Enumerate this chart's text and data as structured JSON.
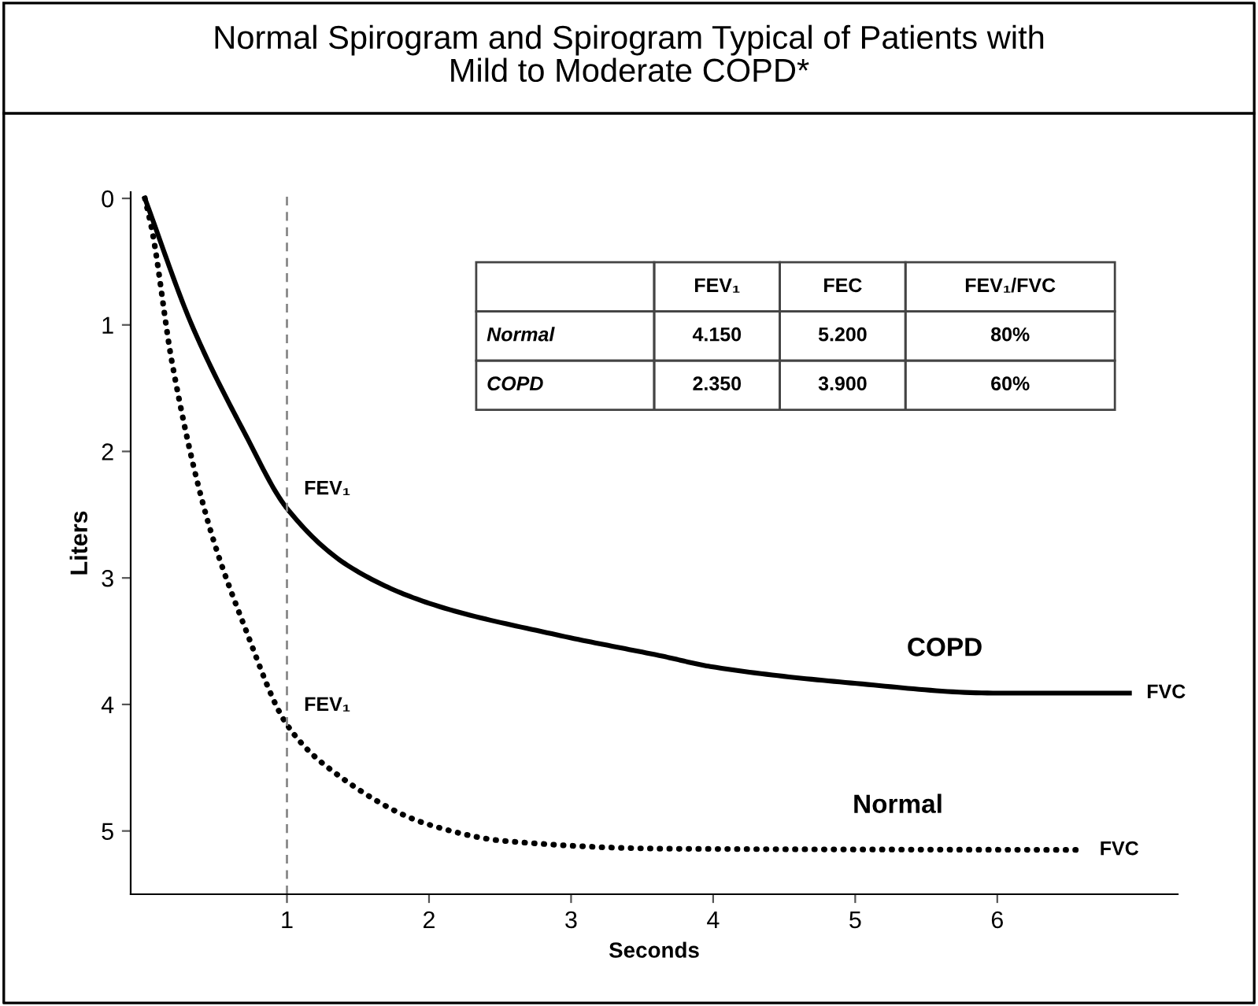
{
  "chart_data": {
    "type": "line",
    "title": "Normal Spirogram and Spirogram Typical of Patients with\nMild to Moderate COPD*",
    "xlabel": "Seconds",
    "ylabel": "Liters",
    "xlim": [
      -0.1,
      7.27
    ],
    "ylim": [
      5.5,
      -0.05
    ],
    "xticks": [
      1,
      2,
      3,
      4,
      5,
      6
    ],
    "yticks": [
      0,
      1,
      2,
      3,
      4,
      5
    ],
    "series": [
      {
        "name": "COPD",
        "color": "#000000",
        "line_style": "solid",
        "x": [
          0,
          0.33,
          0.7,
          1.0,
          1.44,
          2.0,
          2.9,
          3.65,
          3.98,
          4.97,
          5.97,
          6.93
        ],
        "values": [
          0,
          1.0,
          1.85,
          2.45,
          2.91,
          3.2,
          3.45,
          3.62,
          3.7,
          3.83,
          3.91,
          3.91
        ]
      },
      {
        "name": "Normal",
        "color": "#000000",
        "line_style": "dotted",
        "x": [
          0,
          0.05,
          0.19,
          0.44,
          0.7,
          1.0,
          1.29,
          2.0,
          2.54,
          3.65,
          6.6
        ],
        "values": [
          0,
          0.25,
          1.29,
          2.54,
          3.38,
          4.16,
          4.5,
          4.95,
          5.08,
          5.14,
          5.15
        ]
      }
    ],
    "ref_lines": [
      {
        "axis": "x",
        "value": 1,
        "color": "#888888",
        "line_style": "dashed"
      }
    ],
    "annotations": [
      {
        "text": "FEV₁",
        "x": 1,
        "y": 2.45
      },
      {
        "text": "FEV₁",
        "x": 1,
        "y": 4.16
      },
      {
        "text": "FVC",
        "x": 6.93,
        "y": 3.91
      },
      {
        "text": "FVC",
        "x": 6.6,
        "y": 5.15
      },
      "FEV₁",
      "FEC",
      "FEV₁/FVC",
      "Normal",
      "4.150",
      "5.200",
      "80%",
      "COPD",
      "2.350",
      "3.900",
      "60%"
    ]
  }
}
